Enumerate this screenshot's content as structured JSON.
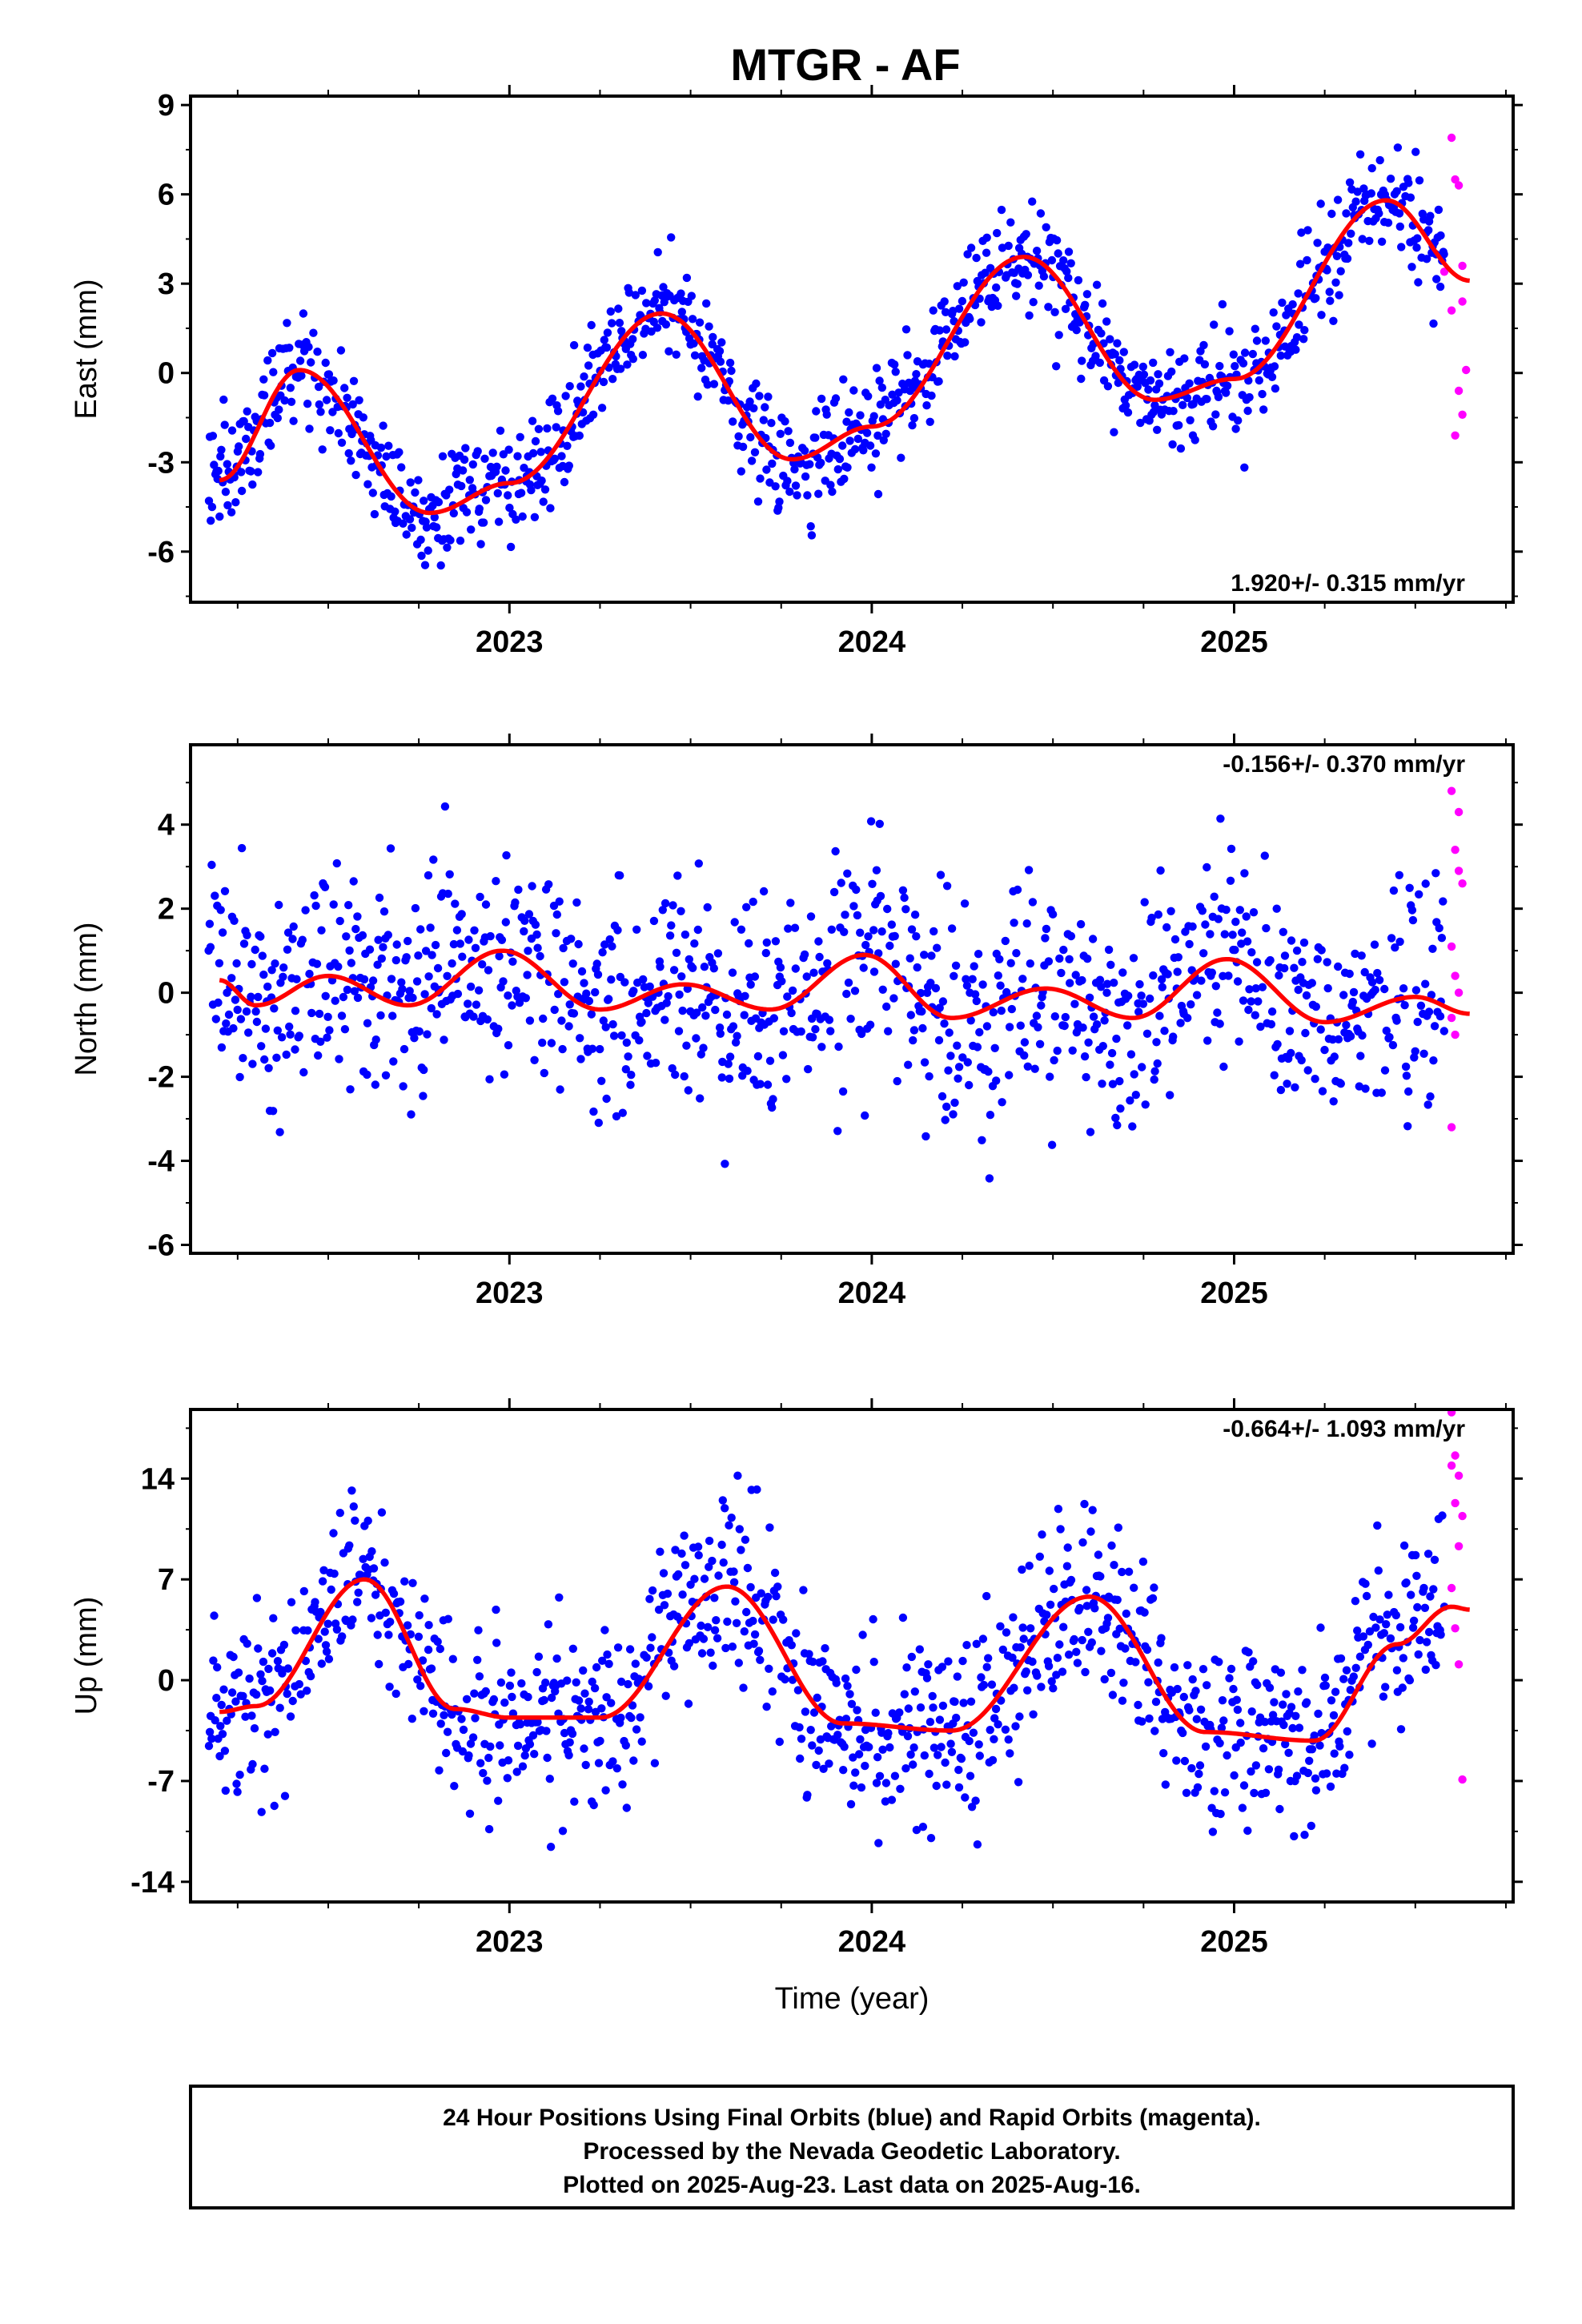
{
  "title": "MTGR - AF",
  "colors": {
    "final": "#0000ff",
    "rapid": "#ff00ff",
    "fit": "#ff0000",
    "frame": "#000000"
  },
  "footer": {
    "lines": [
      "24 Hour Positions Using Final Orbits (blue) and Rapid Orbits (magenta).",
      "Processed by the Nevada Geodetic Laboratory.",
      "Plotted on 2025-Aug-23. Last data on 2025-Aug-16."
    ]
  },
  "chart_data": [
    {
      "type": "scatter",
      "ylabel": "East (mm)",
      "xlabel": "",
      "xlim": [
        2022.12,
        2025.77
      ],
      "ylim": [
        -7.7,
        9.3
      ],
      "yticks": [
        "9",
        "6",
        "3",
        "0",
        "-3",
        "-6"
      ],
      "ytick_values": [
        9,
        6,
        3,
        0,
        -3,
        -6
      ],
      "xticks": [
        "2023",
        "2024",
        "2025"
      ],
      "xtick_values": [
        2023,
        2024,
        2025
      ],
      "rate_label": "1.920+/- 0.315 mm/yr",
      "rate_position": "bottom-right",
      "model": {
        "rate": 1.92,
        "amp1": 2.6,
        "phase1": 0.1,
        "amp2": 0.35,
        "phase2": 1.2,
        "offset": -0.1,
        "ref": 2023.95
      },
      "fit_points": [
        [
          2022.2,
          -3.6
        ],
        [
          2022.42,
          0.1
        ],
        [
          2022.78,
          -4.7
        ],
        [
          2023.0,
          -3.7
        ],
        [
          2023.42,
          2.0
        ],
        [
          2023.78,
          -2.9
        ],
        [
          2024.0,
          -1.8
        ],
        [
          2024.42,
          3.9
        ],
        [
          2024.78,
          -0.9
        ],
        [
          2025.0,
          -0.2
        ],
        [
          2025.42,
          5.8
        ],
        [
          2025.65,
          3.1
        ]
      ],
      "scatter_sd": 0.9,
      "rapid_points": [
        [
          2025.6,
          7.9
        ],
        [
          2025.61,
          6.5
        ],
        [
          2025.62,
          6.3
        ],
        [
          2025.63,
          3.6
        ],
        [
          2025.63,
          2.4
        ],
        [
          2025.6,
          2.1
        ],
        [
          2025.64,
          0.1
        ],
        [
          2025.62,
          -0.6
        ],
        [
          2025.63,
          -1.4
        ],
        [
          2025.61,
          -2.1
        ],
        [
          2025.58,
          3.4
        ]
      ]
    },
    {
      "type": "scatter",
      "ylabel": "North (mm)",
      "xlabel": "",
      "xlim": [
        2022.12,
        2025.77
      ],
      "ylim": [
        -6.2,
        5.9
      ],
      "yticks": [
        "4",
        "2",
        "0",
        "-2",
        "-4",
        "-6"
      ],
      "ytick_values": [
        4,
        2,
        0,
        -2,
        -4,
        -6
      ],
      "xticks": [
        "2023",
        "2024",
        "2025"
      ],
      "xtick_values": [
        2023,
        2024,
        2025
      ],
      "rate_label": "-0.156+/- 0.370 mm/yr",
      "rate_position": "top-right",
      "model": {
        "rate": -0.156,
        "amp1": 0.45,
        "phase1": -0.5,
        "amp2": 0.25,
        "phase2": 0.3,
        "offset": 0.1,
        "ref": 2023.95
      },
      "fit_points": [
        [
          2022.2,
          0.3
        ],
        [
          2022.3,
          -0.3
        ],
        [
          2022.5,
          0.4
        ],
        [
          2022.72,
          -0.3
        ],
        [
          2022.98,
          1.0
        ],
        [
          2023.25,
          -0.4
        ],
        [
          2023.48,
          0.2
        ],
        [
          2023.72,
          -0.4
        ],
        [
          2023.98,
          0.9
        ],
        [
          2024.22,
          -0.6
        ],
        [
          2024.48,
          0.1
        ],
        [
          2024.72,
          -0.6
        ],
        [
          2024.98,
          0.8
        ],
        [
          2025.25,
          -0.7
        ],
        [
          2025.5,
          -0.1
        ],
        [
          2025.65,
          -0.5
        ]
      ],
      "scatter_sd": 1.3,
      "rapid_points": [
        [
          2025.6,
          4.8
        ],
        [
          2025.62,
          4.3
        ],
        [
          2025.61,
          3.4
        ],
        [
          2025.62,
          2.9
        ],
        [
          2025.63,
          2.6
        ],
        [
          2025.6,
          1.1
        ],
        [
          2025.61,
          0.4
        ],
        [
          2025.62,
          0.0
        ],
        [
          2025.6,
          -0.6
        ],
        [
          2025.61,
          -1.0
        ],
        [
          2025.6,
          -3.2
        ]
      ]
    },
    {
      "type": "scatter",
      "ylabel": "Up (mm)",
      "xlabel": "Time (year)",
      "xlim": [
        2022.12,
        2025.77
      ],
      "ylim": [
        -15.4,
        18.8
      ],
      "yticks": [
        "14",
        "7",
        "0",
        "-7",
        "-14"
      ],
      "ytick_values": [
        14,
        7,
        0,
        -7,
        -14
      ],
      "xticks": [
        "2023",
        "2024",
        "2025"
      ],
      "xtick_values": [
        2023,
        2024,
        2025
      ],
      "rate_label": "-0.664+/- 1.093 mm/yr",
      "rate_position": "top-right",
      "model": {
        "rate": -0.664,
        "amp1": 4.5,
        "phase1": 1.2,
        "amp2": 1.0,
        "phase2": 0.5,
        "offset": 0.2,
        "ref": 2023.95
      },
      "fit_points": [
        [
          2022.2,
          -2.2
        ],
        [
          2022.3,
          -1.8
        ],
        [
          2022.6,
          7.0
        ],
        [
          2022.85,
          -2.0
        ],
        [
          2023.0,
          -2.6
        ],
        [
          2023.25,
          -2.6
        ],
        [
          2023.6,
          6.5
        ],
        [
          2023.92,
          -3.0
        ],
        [
          2024.22,
          -3.5
        ],
        [
          2024.6,
          5.8
        ],
        [
          2024.92,
          -3.6
        ],
        [
          2025.22,
          -4.2
        ],
        [
          2025.45,
          2.5
        ],
        [
          2025.6,
          5.1
        ],
        [
          2025.65,
          4.9
        ]
      ],
      "scatter_sd": 3.2,
      "rapid_points": [
        [
          2025.6,
          18.6
        ],
        [
          2025.61,
          15.6
        ],
        [
          2025.6,
          14.9
        ],
        [
          2025.62,
          14.2
        ],
        [
          2025.61,
          12.3
        ],
        [
          2025.63,
          11.4
        ],
        [
          2025.62,
          9.3
        ],
        [
          2025.6,
          6.4
        ],
        [
          2025.61,
          3.6
        ],
        [
          2025.62,
          1.1
        ],
        [
          2025.63,
          -6.9
        ]
      ]
    }
  ]
}
